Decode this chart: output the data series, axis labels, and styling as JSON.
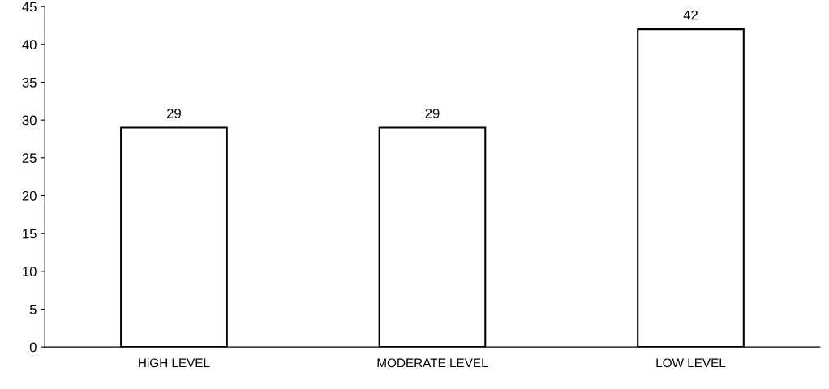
{
  "chart_data": {
    "type": "bar",
    "categories": [
      "HiGH LEVEL",
      "MODERATE LEVEL",
      "LOW LEVEL"
    ],
    "values": [
      29,
      29,
      42
    ],
    "color": "#ffffff",
    "ylim": [
      0,
      45
    ],
    "yticks": [
      0,
      5,
      10,
      15,
      20,
      25,
      30,
      35,
      40,
      45
    ],
    "grid": false,
    "data_labels": true
  }
}
